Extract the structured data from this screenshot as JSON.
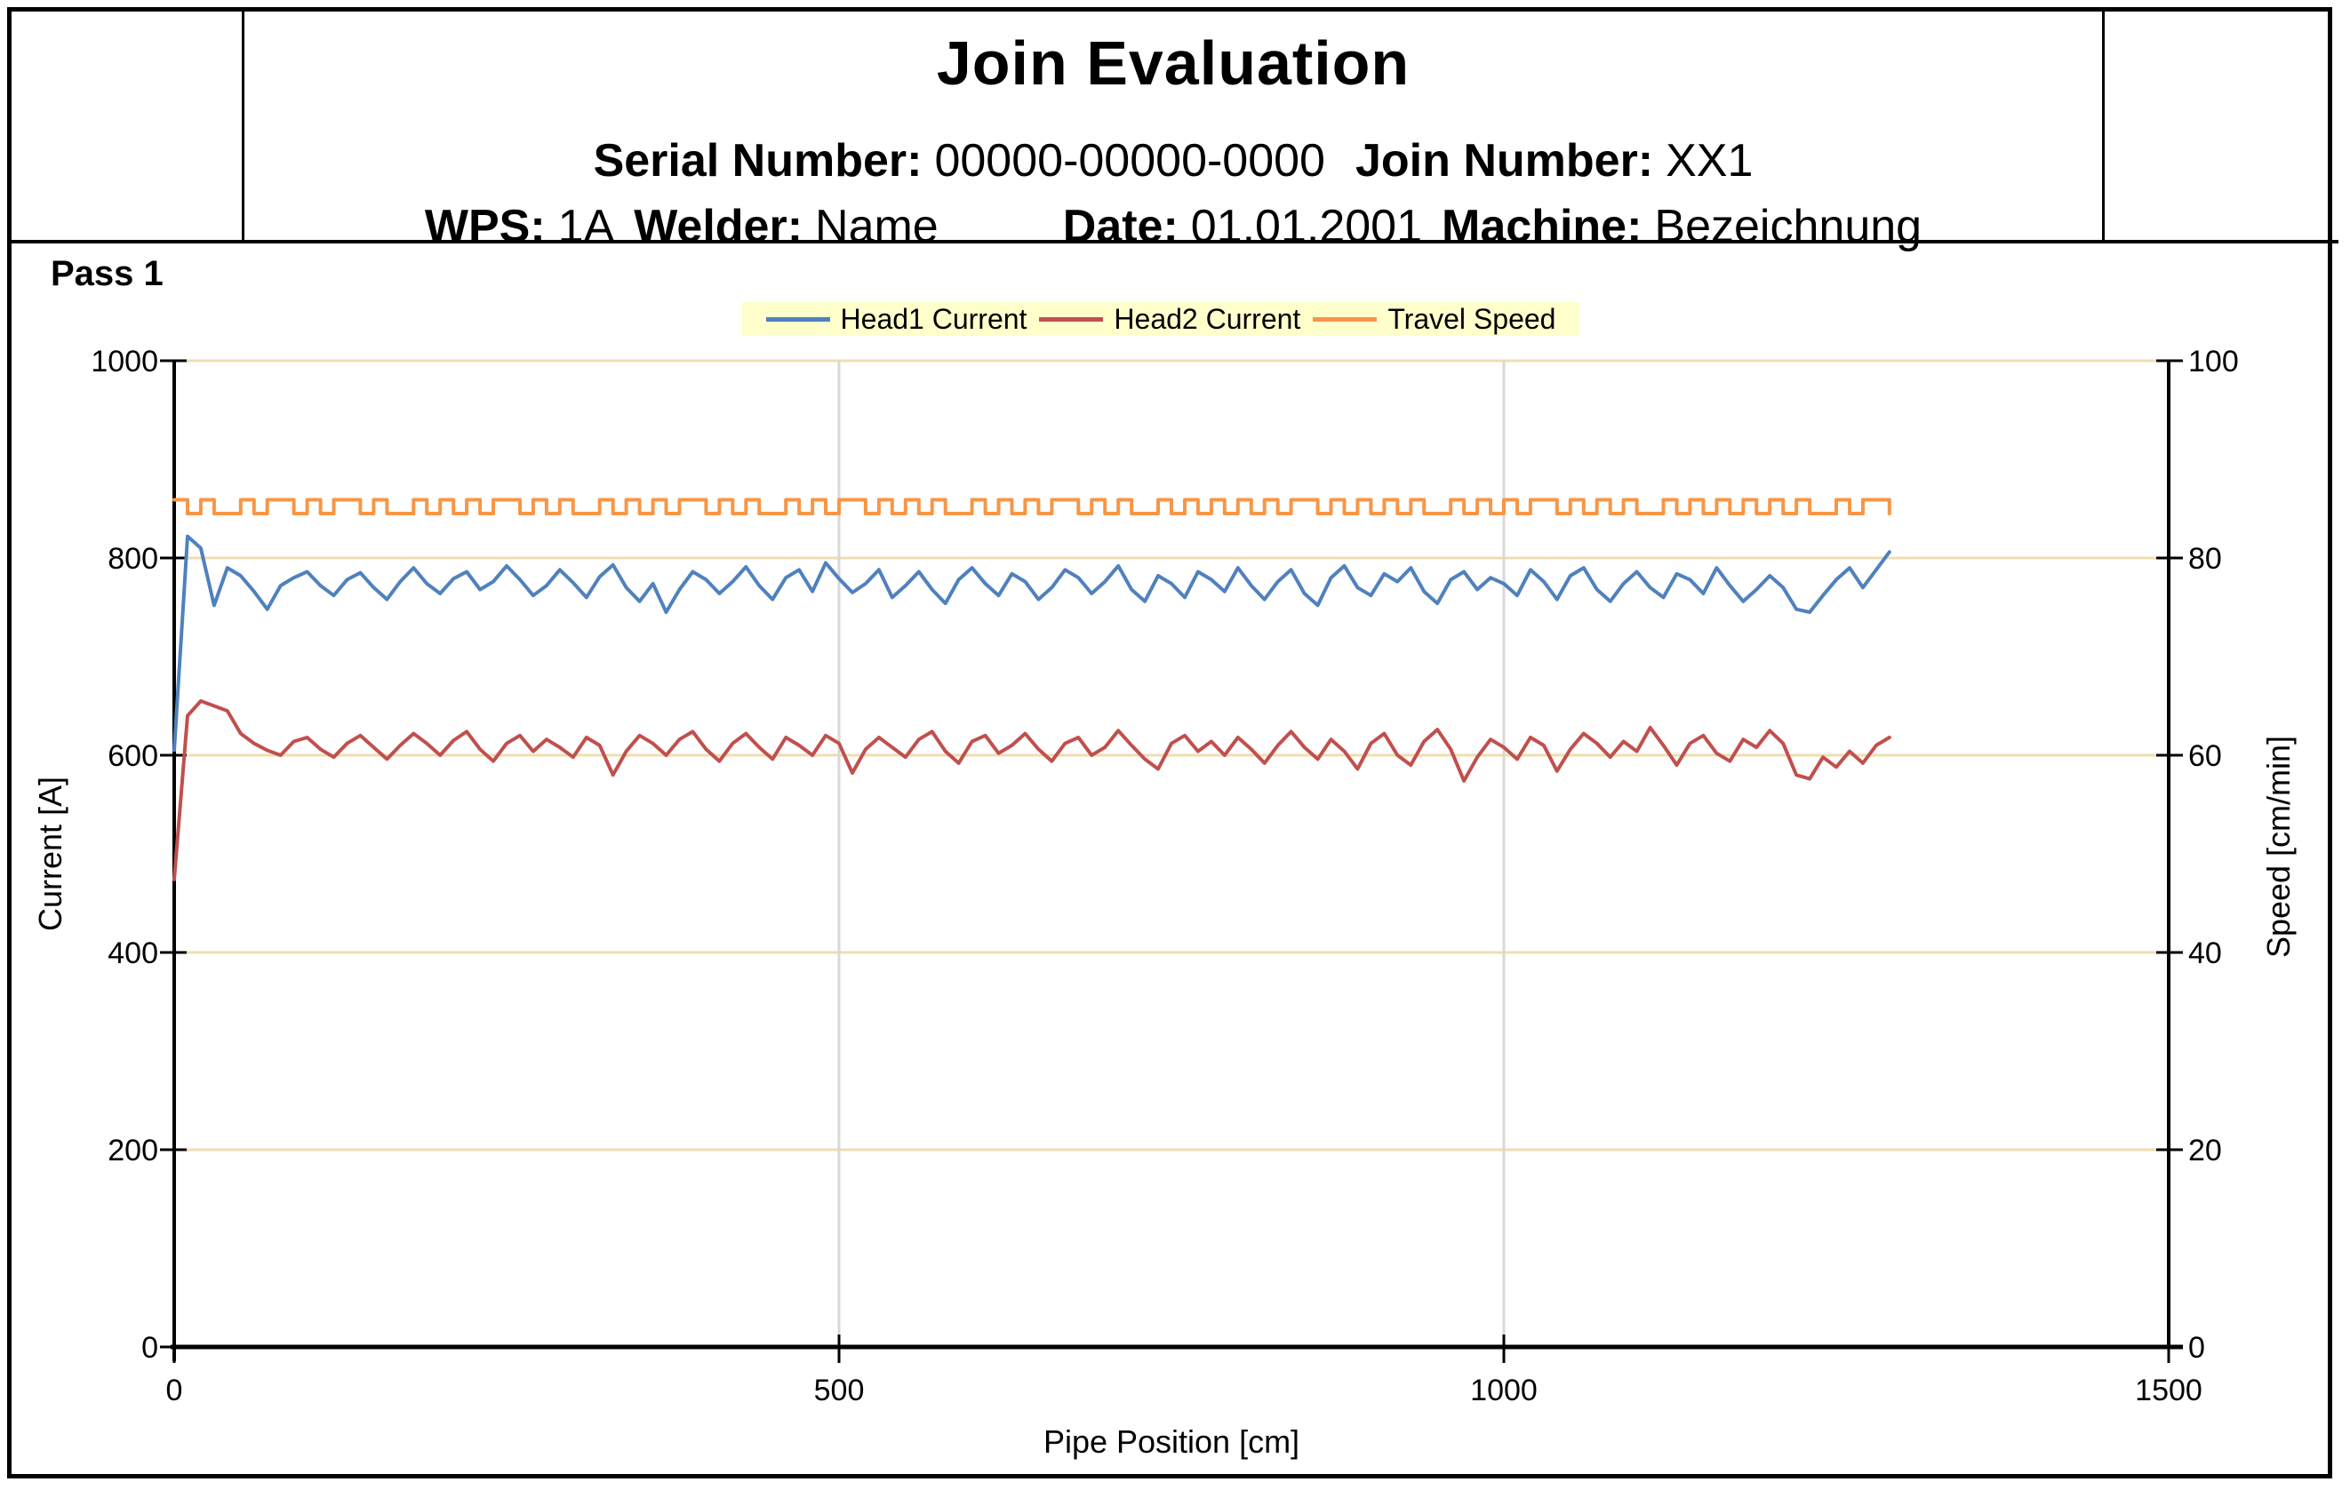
{
  "header": {
    "title": "Join Evaluation",
    "serial_label": "Serial Number:",
    "serial_value": "00000-00000-0000",
    "join_label": "Join Number:",
    "join_value": "XX1",
    "wps_label": "WPS:",
    "wps_value": "1A",
    "welder_label": "Welder:",
    "welder_value": "Name",
    "date_label": "Date:",
    "date_value": "01.01.2001",
    "machine_label": "Machine:",
    "machine_value": "Bezeichnung"
  },
  "pass_label": "Pass 1",
  "chart_data": {
    "type": "line",
    "xlabel": "Pipe Position [cm]",
    "ylabel_left": "Current [A]",
    "ylabel_right": "Speed [cm/min]",
    "x_range": [
      0,
      1500
    ],
    "left_range": [
      0,
      1000
    ],
    "right_range": [
      0,
      100
    ],
    "x_ticks": [
      0,
      500,
      1000,
      1500
    ],
    "left_ticks": [
      0,
      200,
      400,
      600,
      800,
      1000
    ],
    "right_ticks": [
      0,
      20,
      40,
      60,
      80,
      100
    ],
    "grid": {
      "horizontal": true,
      "vertical": true
    },
    "legend_position": "top-center",
    "colors": {
      "grid_horizontal": "#F1DDB0",
      "grid_vertical": "#D8D8D8",
      "axis": "#000000",
      "legend_bg": "#FFFFCC"
    },
    "series": [
      {
        "name": "Head1 Current",
        "axis": "left",
        "unit": "A",
        "color": "#4F81BD",
        "interpolation": "linear",
        "x_start": 0,
        "x_step": 10,
        "values": [
          605,
          822,
          810,
          752,
          790,
          782,
          766,
          748,
          772,
          780,
          786,
          772,
          762,
          778,
          785,
          770,
          758,
          776,
          790,
          774,
          764,
          779,
          786,
          768,
          776,
          792,
          778,
          762,
          772,
          788,
          775,
          760,
          781,
          793,
          770,
          756,
          774,
          745,
          768,
          786,
          778,
          764,
          776,
          791,
          772,
          758,
          780,
          788,
          766,
          795,
          779,
          765,
          774,
          788,
          760,
          772,
          786,
          768,
          754,
          778,
          790,
          774,
          762,
          784,
          776,
          758,
          770,
          788,
          780,
          764,
          776,
          792,
          768,
          756,
          782,
          774,
          760,
          786,
          778,
          766,
          790,
          772,
          758,
          776,
          788,
          764,
          752,
          780,
          792,
          770,
          762,
          784,
          776,
          790,
          766,
          754,
          778,
          786,
          768,
          780,
          774,
          762,
          788,
          776,
          758,
          782,
          790,
          768,
          756,
          774,
          786,
          770,
          760,
          784,
          778,
          764,
          790,
          772,
          756,
          768,
          782,
          770,
          748,
          745,
          762,
          778,
          790,
          770,
          788,
          806
        ]
      },
      {
        "name": "Head2 Current",
        "axis": "left",
        "unit": "A",
        "color": "#C0504D",
        "interpolation": "linear",
        "x_start": 0,
        "x_step": 10,
        "values": [
          474,
          640,
          655,
          650,
          645,
          622,
          612,
          605,
          600,
          614,
          618,
          606,
          598,
          612,
          620,
          608,
          596,
          610,
          622,
          612,
          600,
          615,
          624,
          606,
          594,
          612,
          620,
          604,
          616,
          608,
          598,
          618,
          610,
          580,
          604,
          620,
          612,
          600,
          616,
          624,
          606,
          594,
          612,
          622,
          608,
          596,
          618,
          610,
          600,
          620,
          612,
          582,
          606,
          618,
          608,
          598,
          616,
          624,
          604,
          592,
          614,
          620,
          602,
          610,
          622,
          606,
          594,
          612,
          618,
          600,
          608,
          625,
          610,
          596,
          586,
          612,
          620,
          604,
          614,
          600,
          618,
          606,
          592,
          610,
          624,
          608,
          596,
          616,
          604,
          586,
          612,
          622,
          600,
          590,
          614,
          626,
          606,
          574,
          598,
          616,
          608,
          596,
          618,
          610,
          584,
          606,
          622,
          612,
          598,
          614,
          604,
          628,
          610,
          590,
          612,
          620,
          602,
          594,
          616,
          608,
          625,
          612,
          580,
          576,
          598,
          588,
          604,
          592,
          610,
          618
        ]
      },
      {
        "name": "Travel Speed",
        "axis": "right",
        "unit": "cm/min",
        "color": "#F79646",
        "interpolation": "step",
        "x_start": 0,
        "x_step": 10,
        "values": [
          85.9,
          84.5,
          85.9,
          84.5,
          84.5,
          85.9,
          84.5,
          85.9,
          85.9,
          84.5,
          85.9,
          84.5,
          85.9,
          85.9,
          84.5,
          85.9,
          84.5,
          84.5,
          85.9,
          84.5,
          85.9,
          84.5,
          85.9,
          84.5,
          85.9,
          85.9,
          84.5,
          85.9,
          84.5,
          85.9,
          84.5,
          84.5,
          85.9,
          84.5,
          85.9,
          84.5,
          85.9,
          84.5,
          85.9,
          85.9,
          84.5,
          85.9,
          84.5,
          85.9,
          84.5,
          84.5,
          85.9,
          84.5,
          85.9,
          84.5,
          85.9,
          85.9,
          84.5,
          85.9,
          84.5,
          85.9,
          84.5,
          85.9,
          84.5,
          84.5,
          85.9,
          84.5,
          85.9,
          84.5,
          85.9,
          84.5,
          85.9,
          85.9,
          84.5,
          85.9,
          84.5,
          85.9,
          84.5,
          84.5,
          85.9,
          84.5,
          85.9,
          84.5,
          85.9,
          84.5,
          85.9,
          84.5,
          85.9,
          84.5,
          85.9,
          85.9,
          84.5,
          85.9,
          84.5,
          85.9,
          84.5,
          85.9,
          84.5,
          85.9,
          84.5,
          84.5,
          85.9,
          84.5,
          85.9,
          84.5,
          85.9,
          84.5,
          85.9,
          85.9,
          84.5,
          85.9,
          84.5,
          85.9,
          84.5,
          85.9,
          84.5,
          84.5,
          85.9,
          84.5,
          85.9,
          84.5,
          85.9,
          84.5,
          85.9,
          84.5,
          85.9,
          84.5,
          85.9,
          84.5,
          84.5,
          85.9,
          84.5,
          85.9,
          85.9,
          84.5
        ]
      }
    ]
  }
}
